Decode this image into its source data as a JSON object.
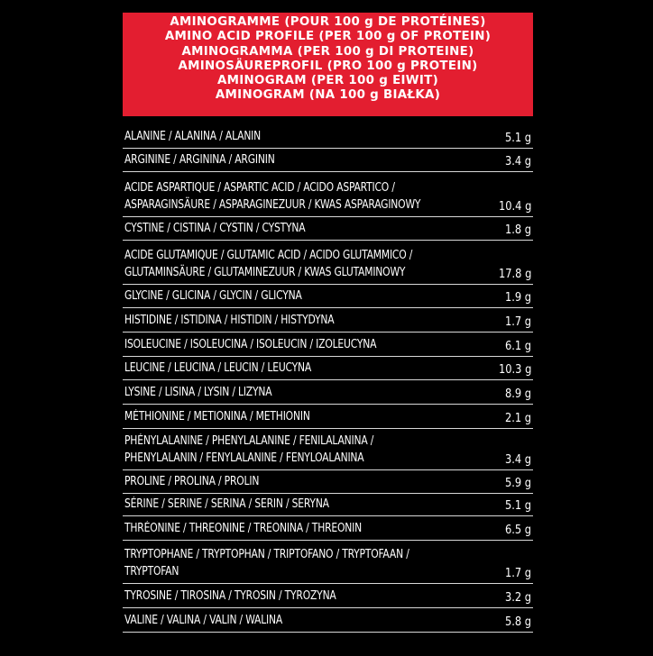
{
  "header": {
    "lines": [
      "AMINOGRAMME (POUR 100 g DE PROTÉINES)",
      "AMINO ACID PROFILE (PER 100 g OF PROTEIN)",
      "AMINOGRAMMA (PER 100 g DI PROTEINE)",
      "AMINOSÄUREPROFIL (PRO 100 g PROTEIN)",
      "AMINOGRAM (PER 100 g EIWIT)",
      "AMINOGRAM (NA 100 g BIAŁKA)"
    ]
  },
  "rows": [
    {
      "name": "ALANINE / ALANINA / ALANIN",
      "value": "5.1 g"
    },
    {
      "name": "ARGININE / ARGININA / ARGININ",
      "value": "3.4 g"
    },
    {
      "name": "ACIDE ASPARTIQUE / ASPARTIC ACID / ACIDO ASPARTICO /\nASPARAGINSÄURE / ASPARAGINEZUUR / KWAS ASPARAGINOWY",
      "value": "10.4 g"
    },
    {
      "name": "CYSTINE / CISTINA / CYSTIN / CYSTYNA",
      "value": "1.8 g"
    },
    {
      "name": "ACIDE GLUTAMIQUE / GLUTAMIC ACID / ACIDO GLUTAMMICO /\nGLUTAMINSÄURE / GLUTAMINEZUUR / KWAS GLUTAMINOWY",
      "value": "17.8 g"
    },
    {
      "name": "GLYCINE / GLICINA / GLYCIN / GLICYNA",
      "value": "1.9 g"
    },
    {
      "name": "HISTIDINE / ISTIDINA / HISTIDIN / HISTYDYNA",
      "value": "1.7 g"
    },
    {
      "name": "ISOLEUCINE / ISOLEUCINA / ISOLEUCIN / IZOLEUCYNA",
      "value": "6.1 g"
    },
    {
      "name": "LEUCINE / LEUCINA / LEUCIN / LEUCYNA",
      "value": "10.3 g"
    },
    {
      "name": "LYSINE / LISINA / LYSIN / LIZYNA",
      "value": "8.9 g"
    },
    {
      "name": "MÉTHIONINE / METIONINA / METHIONIN",
      "value": "2.1 g"
    },
    {
      "name": "PHÉNYLALANINE / PHENYLALANINE / FENILALANINA /\nPHENYLALANIN / FENYLALANINE / FENYLOALANINA",
      "value": "3.4 g"
    },
    {
      "name": "PROLINE / PROLINA / PROLIN",
      "value": "5.9 g"
    },
    {
      "name": "SÉRINE / SERINE / SERINA / SERIN / SERYNA",
      "value": "5.1 g"
    },
    {
      "name": "THRÉONINE / THREONINE / TREONINA / THREONIN",
      "value": "6.5 g"
    },
    {
      "name": "TRYPTOPHANE / TRYPTOPHAN / TRIPTOFANO / TRYPTOFAAN /\nTRYPTOFAN",
      "value": "1.7 g"
    },
    {
      "name": "TYROSINE / TIROSINA / TYROSIN / TYROZYNA",
      "value": "3.2 g"
    },
    {
      "name": "VALINE / VALINA / VALIN / WALINA",
      "value": "5.8 g"
    }
  ]
}
